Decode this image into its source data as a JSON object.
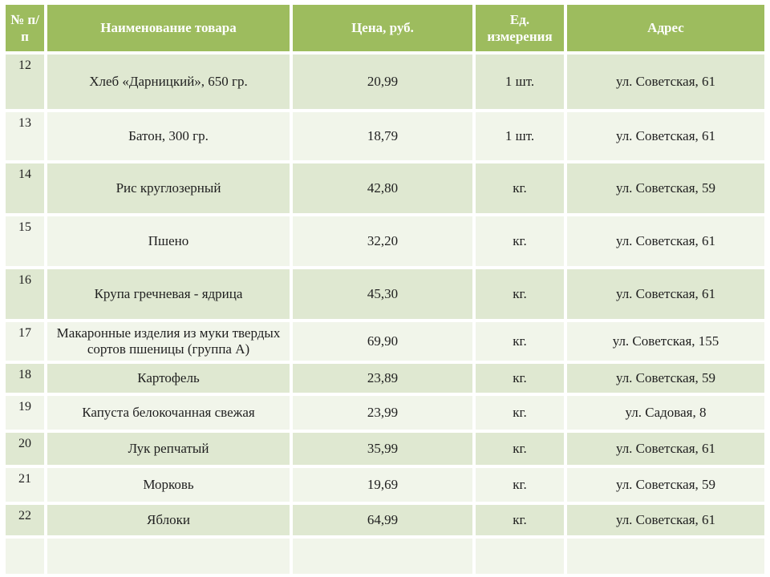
{
  "theme": {
    "header-bg": "#9DBC5E",
    "header-text": "#FFFFFF",
    "band-dark": "#DFE8D1",
    "band-light": "#F1F5EA",
    "gap": "#FFFFFF",
    "body-text": "#1F1F1F"
  },
  "table": {
    "columns": [
      {
        "key": "num",
        "label": "№ п/п"
      },
      {
        "key": "name",
        "label": "Наименование товара"
      },
      {
        "key": "price",
        "label": "Цена, руб."
      },
      {
        "key": "unit",
        "label": "Ед. измерения"
      },
      {
        "key": "address",
        "label": "Адрес"
      }
    ],
    "rows": [
      {
        "num": "12",
        "name": "Хлеб «Дарницкий», 650 гр.",
        "price": "20,99",
        "unit": "1 шт.",
        "address": "ул. Советская, 61"
      },
      {
        "num": "13",
        "name": "Батон, 300 гр.",
        "price": "18,79",
        "unit": "1 шт.",
        "address": "ул. Советская, 61"
      },
      {
        "num": "14",
        "name": "Рис круглозерный",
        "price": "42,80",
        "unit": "кг.",
        "address": "ул. Советская, 59"
      },
      {
        "num": "15",
        "name": "Пшено",
        "price": "32,20",
        "unit": "кг.",
        "address": "ул. Советская, 61"
      },
      {
        "num": "16",
        "name": "Крупа гречневая - ядрица",
        "price": "45,30",
        "unit": "кг.",
        "address": "ул. Советская, 61"
      },
      {
        "num": "17",
        "name": "Макаронные изделия из муки твердых сортов пшеницы (группа А)",
        "price": "69,90",
        "unit": "кг.",
        "address": "ул. Советская, 155"
      },
      {
        "num": "18",
        "name": "Картофель",
        "price": "23,89",
        "unit": "кг.",
        "address": "ул. Советская, 59"
      },
      {
        "num": "19",
        "name": "Капуста белокочанная свежая",
        "price": "23,99",
        "unit": "кг.",
        "address": "ул. Садовая, 8"
      },
      {
        "num": "20",
        "name": "Лук репчатый",
        "price": "35,99",
        "unit": "кг.",
        "address": "ул. Советская, 61"
      },
      {
        "num": "21",
        "name": "Морковь",
        "price": "19,69",
        "unit": "кг.",
        "address": "ул. Советская, 59"
      },
      {
        "num": "22",
        "name": "Яблоки",
        "price": "64,99",
        "unit": "кг.",
        "address": "ул. Советская, 61"
      },
      {
        "num": "",
        "name": "",
        "price": "",
        "unit": "",
        "address": ""
      }
    ]
  }
}
